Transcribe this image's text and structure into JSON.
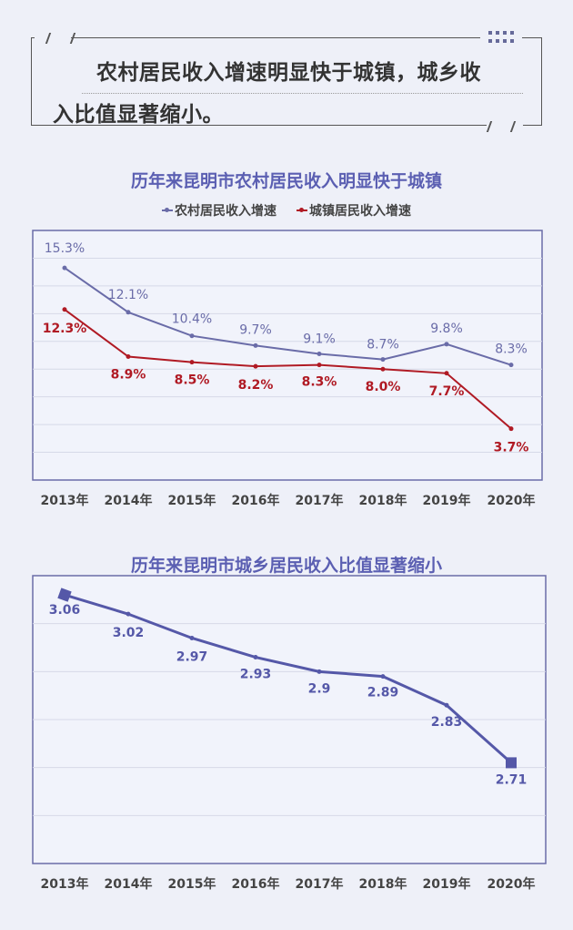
{
  "header": {
    "line1": "农村居民收入增速明显快于城镇，城乡收",
    "line2": "入比值显著缩小。"
  },
  "colors": {
    "rural": "#6a6ca8",
    "urban": "#b01a24",
    "ratio": "#5558a8",
    "title": "#5b5fb2"
  },
  "chart_data": [
    {
      "type": "line",
      "title": "历年来昆明市农村居民收入明显快于城镇",
      "categories": [
        "2013年",
        "2014年",
        "2015年",
        "2016年",
        "2017年",
        "2018年",
        "2019年",
        "2020年"
      ],
      "series": [
        {
          "name": "农村居民收入增速",
          "values": [
            15.3,
            12.1,
            10.4,
            9.7,
            9.1,
            8.7,
            9.8,
            8.3
          ],
          "labels": [
            "15.3%",
            "12.1%",
            "10.4%",
            "9.7%",
            "9.1%",
            "8.7%",
            "9.8%",
            "8.3%"
          ]
        },
        {
          "name": "城镇居民收入增速",
          "values": [
            12.3,
            8.9,
            8.5,
            8.2,
            8.3,
            8.0,
            7.7,
            3.7
          ],
          "labels": [
            "12.3%",
            "8.9%",
            "8.5%",
            "8.2%",
            "8.3%",
            "8.0%",
            "7.7%",
            "3.7%"
          ]
        }
      ],
      "ylim": [
        0,
        18
      ],
      "grid_step": 2,
      "grid": true,
      "legend": "top-center",
      "xlabel": "",
      "ylabel": ""
    },
    {
      "type": "line",
      "title": "历年来昆明市城乡居民收入比值显著缩小",
      "categories": [
        "2013年",
        "2014年",
        "2015年",
        "2016年",
        "2017年",
        "2018年",
        "2019年",
        "2020年"
      ],
      "series": [
        {
          "name": "城乡居民收入比值",
          "values": [
            3.06,
            3.02,
            2.97,
            2.93,
            2.9,
            2.89,
            2.83,
            2.71
          ],
          "labels": [
            "3.06",
            "3.02",
            "2.97",
            "2.93",
            "2.9",
            "2.89",
            "2.83",
            "2.71"
          ]
        }
      ],
      "ylim": [
        2.5,
        3.1
      ],
      "grid_step": 0.1,
      "grid": true,
      "legend": "none",
      "xlabel": "",
      "ylabel": ""
    }
  ]
}
